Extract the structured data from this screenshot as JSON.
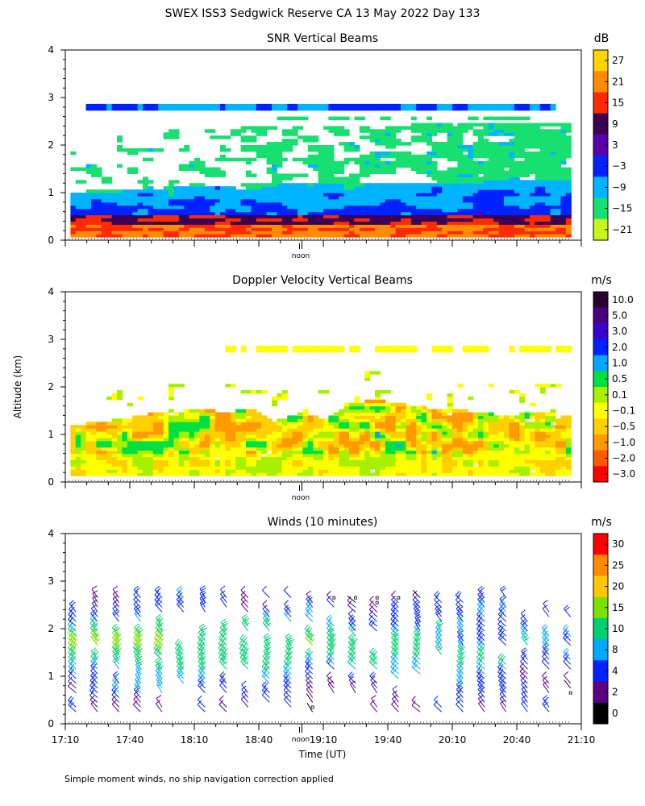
{
  "figure": {
    "title": "SWEX ISS3 Sedgwick Reserve CA  13 May 2022 Day 133",
    "footnote": "Simple moment winds, no ship navigation correction applied",
    "shared_ylabel": "Altitude (km)",
    "shared_xlabel": "Time (UT)",
    "noon_label": "noon"
  },
  "chart_data": [
    {
      "type": "heatmap",
      "title": "SNR Vertical Beams",
      "ylabel": "Altitude (km)",
      "ylim": [
        0,
        4
      ],
      "yticks": [
        "0",
        "1",
        "2",
        "3",
        "4"
      ],
      "xlim_minutes_utc": [
        1030,
        1270
      ],
      "colorbar_unit": "dB",
      "colorbar_labels": [
        "27",
        "21",
        "15",
        "9",
        "3",
        "−3",
        "−9",
        "−15",
        "−21"
      ],
      "colorbar_colors": [
        "#ffd400",
        "#ff8c00",
        "#ff2a00",
        "#3d0050",
        "#5a00aa",
        "#0022ff",
        "#00b4ff",
        "#18e070",
        "#c8f51e"
      ],
      "features": {
        "boundary_layer_top_km": 1.2,
        "strong_echo_layers_km": [
          0.2,
          0.45
        ],
        "cloud_layer_km": 2.8
      }
    },
    {
      "type": "heatmap",
      "title": "Doppler Velocity Vertical Beams",
      "ylabel": "Altitude (km)",
      "ylim": [
        0,
        4
      ],
      "yticks": [
        "0",
        "1",
        "2",
        "3",
        "4"
      ],
      "xlim_minutes_utc": [
        1030,
        1270
      ],
      "colorbar_unit": "m/s",
      "colorbar_labels": [
        "10.0",
        "5.0",
        "3.0",
        "2.0",
        "1.0",
        "0.5",
        "0.1",
        "−0.1",
        "−0.5",
        "−1.0",
        "−2.0",
        "−3.0"
      ],
      "colorbar_colors": [
        "#2b0030",
        "#4b0082",
        "#3a00d0",
        "#0022ff",
        "#00a8ff",
        "#00e040",
        "#a8f000",
        "#ffff00",
        "#ffd000",
        "#ff9a00",
        "#ff5a00",
        "#ff0000"
      ],
      "features": {
        "boundary_layer_top_km": 1.3,
        "cloud_layer_km": 2.8
      }
    },
    {
      "type": "scatter",
      "title": "Winds (10 minutes)",
      "ylabel": "Altitude (km)",
      "xlabel": "Time (UT)",
      "ylim": [
        0,
        4
      ],
      "yticks": [
        "0",
        "1",
        "2",
        "3",
        "4"
      ],
      "xlim_minutes_utc": [
        1030,
        1270
      ],
      "xticks": [
        "17:10",
        "17:40",
        "18:10",
        "18:40",
        "19:10",
        "19:40",
        "20:10",
        "20:40",
        "21:10"
      ],
      "colorbar_unit": "m/s",
      "colorbar_labels": [
        "30",
        "25",
        "20",
        "15",
        "10",
        "8",
        "4",
        "2",
        "0"
      ],
      "colorbar_colors": [
        "#ff0000",
        "#ff8c00",
        "#ffc800",
        "#7ee000",
        "#00d070",
        "#00a8ff",
        "#0022ff",
        "#5a0080",
        "#000000"
      ],
      "profile_interval_minutes": 10,
      "profile_top_km": 2.7
    }
  ]
}
